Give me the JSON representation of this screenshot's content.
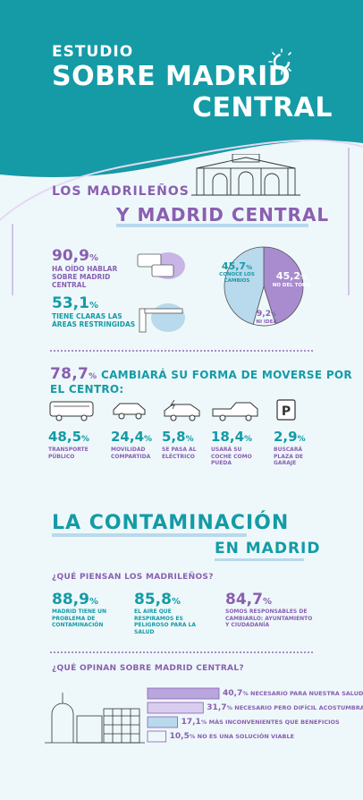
{
  "header": {
    "line1": "ESTUDIO",
    "line2": "SOBRE MADRID",
    "line3": "CENTRAL"
  },
  "section1": {
    "title1": "LOS MADRILEÑOS",
    "title2": "Y MADRID CENTRAL",
    "stat_heard": {
      "value": "90,9",
      "unit": "%",
      "caption": "HA OÍDO HABLAR SOBRE MADRID CENTRAL"
    },
    "stat_areas": {
      "value": "53,1",
      "unit": "%",
      "caption": "TIENE CLARAS LAS ÁREAS RESTRINGIDAS"
    },
    "pie": {
      "slices": [
        {
          "value": "45,7",
          "unit": "%",
          "label": "CONOCE LOS CAMBIOS",
          "pct": 45.7,
          "color": "#b9d9ec"
        },
        {
          "value": "45,2",
          "unit": "%",
          "label": "NO DEL TODO",
          "pct": 45.2,
          "color": "#a98cd0"
        },
        {
          "value": "9,2",
          "unit": "%",
          "label": "NI IDEA",
          "pct": 9.2,
          "color": "#eef8fb"
        }
      ]
    }
  },
  "transport": {
    "headline_value": "78,7",
    "headline_unit": "%",
    "headline_text": "CAMBIARÁ SU FORMA DE MOVERSE POR EL CENTRO:",
    "items": [
      {
        "icon": "bus-icon",
        "value": "48,5",
        "unit": "%",
        "caption": "TRANSPORTE PÚBLICO"
      },
      {
        "icon": "shared-car-icon",
        "value": "24,4",
        "unit": "%",
        "caption": "MOVILIDAD COMPARTIDA"
      },
      {
        "icon": "electric-car-icon",
        "value": "5,8",
        "unit": "%",
        "caption": "SE PASA AL ELÉCTRICO"
      },
      {
        "icon": "pickup-car-icon",
        "value": "18,4",
        "unit": "%",
        "caption": "USARÁ SU COCHE COMO PUEDA"
      },
      {
        "icon": "parking-icon",
        "value": "2,9",
        "unit": "%",
        "caption": "BUSCARÁ PLAZA DE GARAJE"
      }
    ]
  },
  "section2": {
    "title1": "LA CONTAMINACIÓN",
    "title2": "EN MADRID",
    "question1": "¿QUÉ PIENSAN LOS MADRILEÑOS?",
    "opinions": [
      {
        "value": "88,9",
        "unit": "%",
        "caption": "MADRID TIENE UN PROBLEMA DE CONTAMINACIÓN"
      },
      {
        "value": "85,8",
        "unit": "%",
        "caption": "EL AIRE QUE RESPIRAMOS ES PELIGROSO PARA LA SALUD"
      },
      {
        "value": "84,7",
        "unit": "%",
        "caption": "SOMOS RESPONSABLES DE CAMBIARLO: AYUNTAMIENTO Y CIUDADANÍA"
      }
    ],
    "question2": "¿QUÉ OPINAN SOBRE MADRID CENTRAL?",
    "bars": [
      {
        "value": "40,7",
        "unit": "%",
        "label": "NECESARIO PARA NUESTRA SALUD",
        "pct": 40.7
      },
      {
        "value": "31,7",
        "unit": "%",
        "label": "NECESARIO PERO DIFÍCIL ACOSTUMBRARSE",
        "pct": 31.7
      },
      {
        "value": "17,1",
        "unit": "%",
        "label": "MÁS INCONVENIENTES QUE BENEFICIOS",
        "pct": 17.1
      },
      {
        "value": "10,5",
        "unit": "%",
        "label": "NO ES UNA SOLUCIÓN VIABLE",
        "pct": 10.5
      }
    ]
  },
  "colors": {
    "teal": "#149ba6",
    "purple": "#8a5fb0",
    "light_blue": "#b9d9ec",
    "lavender": "#a98cd0"
  }
}
